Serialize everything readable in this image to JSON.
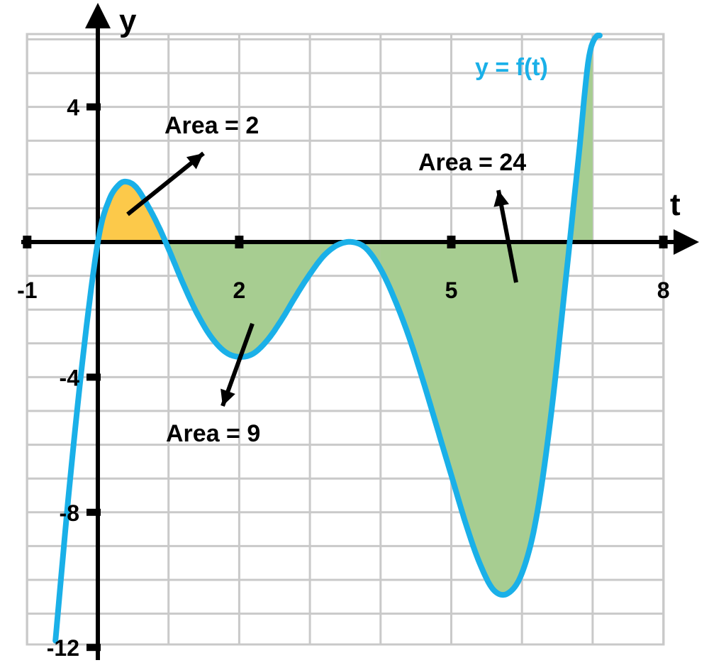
{
  "chart_data": {
    "type": "line",
    "title": "",
    "xlabel": "t",
    "ylabel": "y",
    "xlim": [
      -1,
      8
    ],
    "ylim": [
      -12,
      6
    ],
    "grid": true,
    "x_ticks": [
      {
        "value": -1,
        "label": "-1"
      },
      {
        "value": 2,
        "label": "2"
      },
      {
        "value": 5,
        "label": "5"
      },
      {
        "value": 8,
        "label": "8"
      }
    ],
    "y_ticks": [
      {
        "value": 4,
        "label": "4"
      },
      {
        "value": -4,
        "label": "-4"
      },
      {
        "value": -8,
        "label": "-8"
      },
      {
        "value": -12,
        "label": "-12"
      }
    ],
    "series": [
      {
        "name": "y = f(t)",
        "color": "#1ab0e8",
        "x": [
          -0.6,
          -0.4,
          -0.2,
          0,
          0.15,
          0.3,
          0.42,
          0.55,
          0.7,
          0.85,
          1,
          1.2,
          1.4,
          1.6,
          1.8,
          2,
          2.2,
          2.4,
          2.6,
          2.8,
          3,
          3.2,
          3.4,
          3.6,
          3.8,
          4,
          4.2,
          4.4,
          4.6,
          4.8,
          5,
          5.2,
          5.4,
          5.6,
          5.8,
          6,
          6.2,
          6.4,
          6.6,
          6.8,
          6.95,
          7.1
        ],
        "y": [
          -11.8,
          -7.2,
          -3.2,
          0,
          1.2,
          1.7,
          1.78,
          1.6,
          1.1,
          0.5,
          -0.2,
          -1.2,
          -2.1,
          -2.8,
          -3.25,
          -3.4,
          -3.3,
          -2.9,
          -2.3,
          -1.6,
          -0.95,
          -0.4,
          -0.08,
          0,
          -0.2,
          -0.8,
          -1.7,
          -2.8,
          -4.1,
          -5.5,
          -6.9,
          -8.3,
          -9.5,
          -10.3,
          -10.4,
          -9.8,
          -8.2,
          -5.3,
          -1.5,
          2.5,
          5.5,
          6.2
        ]
      }
    ],
    "shaded_regions": [
      {
        "from": 0,
        "to": 1,
        "color": "#fcc94a",
        "label": "Area = 2"
      },
      {
        "from": 1,
        "to": 4,
        "color": "#a7cd91",
        "label": "Area = 9"
      },
      {
        "from": 4,
        "to": 7,
        "color": "#a7cd91",
        "label": "Area = 24"
      }
    ],
    "curve_label": "y = f(t)",
    "annotations": [
      "Area = 2",
      "Area = 9",
      "Area = 24"
    ]
  }
}
